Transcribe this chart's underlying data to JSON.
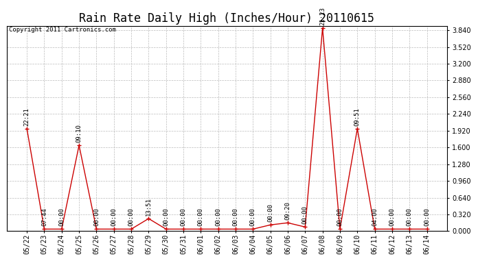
{
  "title": "Rain Rate Daily High (Inches/Hour) 20110615",
  "copyright": "Copyright 2011 Cartronics.com",
  "x_labels": [
    "05/22",
    "05/23",
    "05/24",
    "05/25",
    "05/26",
    "05/27",
    "05/28",
    "05/29",
    "05/30",
    "05/31",
    "06/01",
    "06/02",
    "06/03",
    "06/04",
    "06/05",
    "06/06",
    "06/07",
    "06/08",
    "06/09",
    "06/10",
    "06/11",
    "06/12",
    "06/13",
    "06/14"
  ],
  "y_values": [
    1.96,
    0.04,
    0.04,
    1.64,
    0.04,
    0.04,
    0.04,
    0.24,
    0.04,
    0.04,
    0.04,
    0.04,
    0.04,
    0.04,
    0.12,
    0.16,
    0.08,
    3.88,
    0.04,
    1.96,
    0.04,
    0.04,
    0.04,
    0.04
  ],
  "time_labels": [
    "22:21",
    "07:44",
    "00:00",
    "09:10",
    "00:00",
    "00:00",
    "00:00",
    "13:51",
    "00:00",
    "00:00",
    "00:00",
    "00:00",
    "00:00",
    "00:00",
    "00:00",
    "09:20",
    "00:00",
    "21:23",
    "00:00",
    "09:51",
    "04:00",
    "00:00",
    "00:00",
    "00:00"
  ],
  "ylim": [
    0.0,
    3.92
  ],
  "yticks": [
    0.0,
    0.32,
    0.64,
    0.96,
    1.28,
    1.6,
    1.92,
    2.24,
    2.56,
    2.88,
    3.2,
    3.52,
    3.84
  ],
  "line_color": "#cc0000",
  "marker_color": "#cc0000",
  "bg_color": "#ffffff",
  "grid_color": "#bbbbbb",
  "title_fontsize": 12,
  "tick_fontsize": 7,
  "annotation_fontsize": 6.5
}
